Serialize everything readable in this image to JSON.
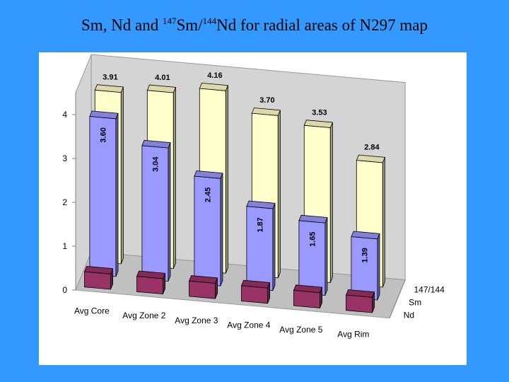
{
  "title": {
    "part1": "Sm, Nd and ",
    "sup1": "147",
    "part2": "Sm/",
    "sup2": "144",
    "part3": "Nd for radial areas of N297 map"
  },
  "chart_data": {
    "type": "bar",
    "title": "Sm, Nd and 147Sm/144Nd for radial areas of N297 map",
    "categories": [
      "Avg Core",
      "Avg Zone 2",
      "Avg Zone 3",
      "Avg Zone 4",
      "Avg Zone 5",
      "Avg Rim"
    ],
    "series": [
      {
        "name": "Nd",
        "values": [
          0.35,
          0.35,
          0.35,
          0.35,
          0.35,
          0.35
        ],
        "color": "#993366",
        "labels": [
          "",
          "",
          "",
          "",
          "",
          ""
        ]
      },
      {
        "name": "Sm",
        "values": [
          3.6,
          3.04,
          2.45,
          1.87,
          1.65,
          1.39
        ],
        "color": "#9999ff",
        "labels": [
          "3.60",
          "3.04",
          "2.45",
          "1.87",
          "1.65",
          "1.39"
        ]
      },
      {
        "name": "147/144",
        "values": [
          3.91,
          4.01,
          4.16,
          3.7,
          3.53,
          2.84
        ],
        "color": "#ffffcc",
        "labels": [
          "3.91",
          "4.01",
          "4.16",
          "3.70",
          "3.53",
          "2.84"
        ]
      }
    ],
    "yticks": [
      "0",
      "1",
      "2",
      "3",
      "4"
    ],
    "ylim": [
      0,
      4.5
    ],
    "xlabel": "",
    "ylabel": "",
    "grid": false,
    "legend": "none"
  }
}
